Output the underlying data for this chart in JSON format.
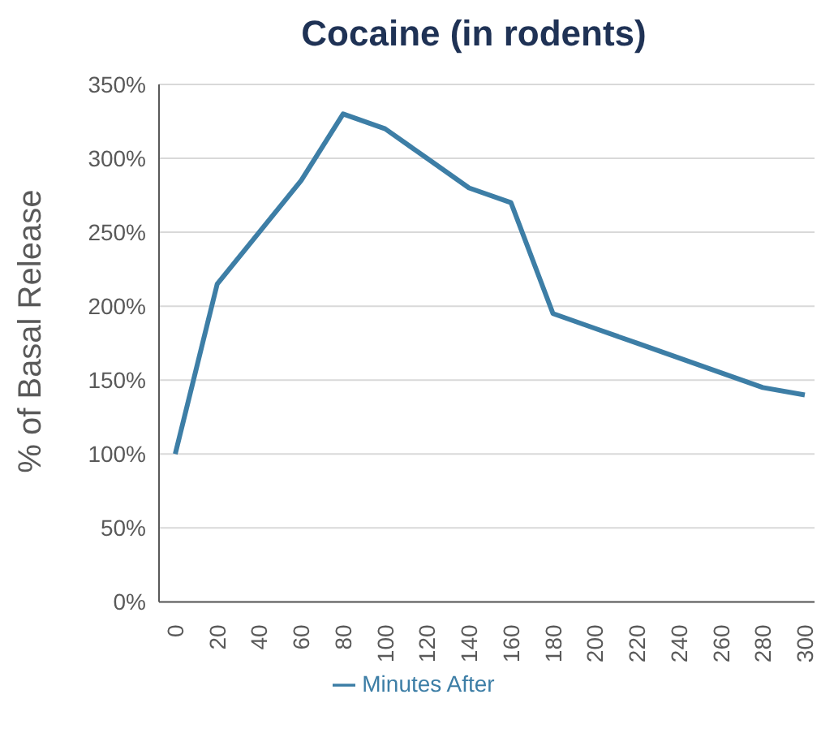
{
  "chart_data": {
    "type": "line",
    "title": "Cocaine (in rodents)",
    "ylabel": "% of Basal Release",
    "categories": [
      "0",
      "20",
      "40",
      "60",
      "80",
      "100",
      "120",
      "140",
      "160",
      "180",
      "200",
      "220",
      "240",
      "260",
      "280",
      "300"
    ],
    "series": [
      {
        "name": "Minutes After",
        "color": "#3d7ea6",
        "values": [
          100,
          215,
          250,
          285,
          330,
          320,
          300,
          280,
          270,
          195,
          185,
          175,
          165,
          155,
          145,
          140
        ]
      }
    ],
    "ylim": [
      0,
      350
    ],
    "yticks": [
      {
        "value": 0,
        "label": "0%"
      },
      {
        "value": 50,
        "label": "50%"
      },
      {
        "value": 100,
        "label": "100%"
      },
      {
        "value": 150,
        "label": "150%"
      },
      {
        "value": 200,
        "label": "200%"
      },
      {
        "value": 250,
        "label": "250%"
      },
      {
        "value": 300,
        "label": "300%"
      },
      {
        "value": 350,
        "label": "350%"
      }
    ],
    "grid": "y",
    "legend": "bottom",
    "marker": "none",
    "line_style": "solid"
  }
}
